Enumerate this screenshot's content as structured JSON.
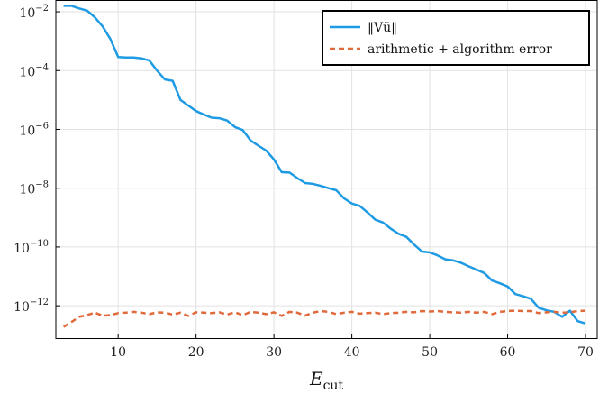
{
  "chart_data": {
    "type": "line",
    "xlabel": "E",
    "xlabel_sub": "cut",
    "ylabel": "",
    "title": "",
    "xscale": "linear",
    "yscale": "log",
    "xlim": [
      2,
      71.5
    ],
    "ylim_log10": [
      -13.1,
      -1.6
    ],
    "grid": true,
    "legend_position": "top-right",
    "x_ticks": [
      10,
      20,
      30,
      40,
      50,
      60,
      70
    ],
    "x_tick_labels": [
      "10",
      "20",
      "30",
      "40",
      "50",
      "60",
      "70"
    ],
    "y_ticks_log10": [
      -12,
      -10,
      -8,
      -6,
      -4,
      -2
    ],
    "y_tick_labels": [
      {
        "base": "10",
        "exp": "−12"
      },
      {
        "base": "10",
        "exp": "−10"
      },
      {
        "base": "10",
        "exp": "−8"
      },
      {
        "base": "10",
        "exp": "−6"
      },
      {
        "base": "10",
        "exp": "−4"
      },
      {
        "base": "10",
        "exp": "−2"
      }
    ],
    "series": [
      {
        "name": "‖Vũ‖",
        "color": "#1f9be3",
        "style": "solid",
        "x": [
          3,
          4,
          5,
          6,
          7,
          8,
          9,
          10,
          11,
          12,
          13,
          14,
          15,
          16,
          17,
          18,
          19,
          20,
          21,
          22,
          23,
          24,
          25,
          26,
          27,
          28,
          29,
          30,
          31,
          32,
          33,
          34,
          35,
          36,
          37,
          38,
          39,
          40,
          41,
          42,
          43,
          44,
          45,
          46,
          47,
          48,
          49,
          50,
          51,
          52,
          53,
          54,
          55,
          56,
          57,
          58,
          59,
          60,
          61,
          62,
          63,
          64,
          65,
          66,
          67,
          68,
          69,
          70
        ],
        "y": [
          0.016,
          0.016,
          0.013,
          0.011,
          0.0065,
          0.0032,
          0.0012,
          0.00029,
          0.00028,
          0.00028,
          0.00026,
          0.00022,
          0.0001,
          5e-05,
          4.5e-05,
          1e-05,
          6.5e-06,
          4.2e-06,
          3.2e-06,
          2.5e-06,
          2.4e-06,
          2e-06,
          1.2e-06,
          9.5e-07,
          4.2e-07,
          2.8e-07,
          1.9e-07,
          9.5e-08,
          3.5e-08,
          3.4e-08,
          2.2e-08,
          1.5e-08,
          1.4e-08,
          1.2e-08,
          1e-08,
          8.5e-09,
          4.5e-09,
          3e-09,
          2.5e-09,
          1.5e-09,
          8.5e-10,
          6.8e-10,
          4.2e-10,
          2.8e-10,
          2.2e-10,
          1.2e-10,
          7e-11,
          6.5e-11,
          5.2e-11,
          3.8e-11,
          3.5e-11,
          2.9e-11,
          2.2e-11,
          1.7e-11,
          1.3e-11,
          7.2e-12,
          5.8e-12,
          4.5e-12,
          2.5e-12,
          2.1e-12,
          1.7e-12,
          8.5e-13,
          7e-13,
          6.2e-13,
          4.2e-13,
          6.8e-13,
          3e-13,
          2.5e-13
        ]
      },
      {
        "name": "arithmetic + algorithm error",
        "color": "#e06a3c",
        "style": "dashed",
        "x": [
          3,
          4,
          5,
          6,
          7,
          8,
          9,
          10,
          11,
          12,
          13,
          14,
          15,
          16,
          17,
          18,
          19,
          20,
          21,
          22,
          23,
          24,
          25,
          26,
          27,
          28,
          29,
          30,
          31,
          32,
          33,
          34,
          35,
          36,
          37,
          38,
          39,
          40,
          41,
          42,
          43,
          44,
          45,
          46,
          47,
          48,
          49,
          50,
          51,
          52,
          53,
          54,
          55,
          56,
          57,
          58,
          59,
          60,
          61,
          62,
          63,
          64,
          65,
          66,
          67,
          68,
          69,
          70
        ],
        "y": [
          1.9e-13,
          2.8e-13,
          4.2e-13,
          4.8e-13,
          5.8e-13,
          4.6e-13,
          4.8e-13,
          5.6e-13,
          5.8e-13,
          6.2e-13,
          5.8e-13,
          5.2e-13,
          6e-13,
          5.8e-13,
          5e-13,
          5.8e-13,
          4.5e-13,
          6e-13,
          5.8e-13,
          5.6e-13,
          6e-13,
          5e-13,
          6e-13,
          4.8e-13,
          6.2e-13,
          5.8e-13,
          5.2e-13,
          6e-13,
          4.5e-13,
          6.2e-13,
          5.8e-13,
          4.6e-13,
          5.8e-13,
          6.6e-13,
          6.2e-13,
          5.2e-13,
          5.8e-13,
          6.2e-13,
          5.4e-13,
          5.6e-13,
          5.8e-13,
          5.2e-13,
          5.6e-13,
          5.8e-13,
          6.2e-13,
          6e-13,
          6.6e-13,
          6.4e-13,
          6.6e-13,
          6.2e-13,
          6e-13,
          5.8e-13,
          6.2e-13,
          5.8e-13,
          6.2e-13,
          5.2e-13,
          6.2e-13,
          6.6e-13,
          6.8e-13,
          6.6e-13,
          6.6e-13,
          5.6e-13,
          6e-13,
          6.2e-13,
          5.8e-13,
          6e-13,
          6.6e-13,
          6.8e-13
        ]
      }
    ]
  }
}
